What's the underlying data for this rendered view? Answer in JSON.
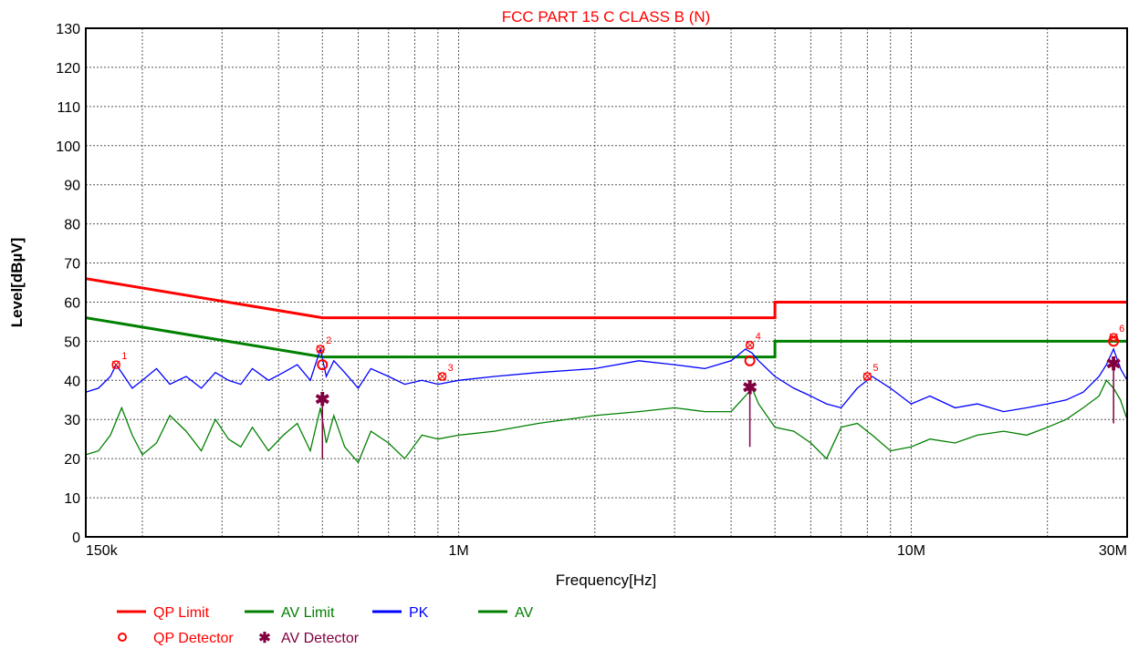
{
  "chart_data": {
    "type": "line",
    "title": "FCC PART 15 C CLASS B (N)",
    "xlabel": "Frequency[Hz]",
    "ylabel": "Level[dBµV]",
    "x_scale": "log",
    "xlim": [
      150000,
      30000000
    ],
    "ylim": [
      0,
      130
    ],
    "grid": true,
    "y_ticks": [
      "0",
      "10",
      "20",
      "30",
      "40",
      "50",
      "60",
      "70",
      "80",
      "90",
      "100",
      "110",
      "120",
      "130"
    ],
    "x_ticks": [
      {
        "value": 150000,
        "label": "150k"
      },
      {
        "value": 1000000,
        "label": "1M"
      },
      {
        "value": 10000000,
        "label": "10M"
      },
      {
        "value": 30000000,
        "label": "30M"
      }
    ],
    "colors": {
      "qp_limit": "#ff0000",
      "av_limit": "#008000",
      "pk": "#0000ff",
      "av": "#008000",
      "qp_detector": "#ff0000",
      "av_detector": "#800040"
    },
    "series": [
      {
        "name": "QP Limit",
        "color": "#ff0000",
        "x": [
          150000,
          500000,
          500000,
          5000000,
          5000000,
          30000000
        ],
        "y": [
          66,
          56,
          56,
          56,
          60,
          60
        ]
      },
      {
        "name": "AV Limit",
        "color": "#008000",
        "x": [
          150000,
          500000,
          500000,
          5000000,
          5000000,
          30000000
        ],
        "y": [
          56,
          46,
          46,
          46,
          50,
          50
        ]
      },
      {
        "name": "PK",
        "color": "#0000ff",
        "x": [
          150000,
          160000,
          170000,
          175000,
          180000,
          190000,
          200000,
          215000,
          230000,
          250000,
          270000,
          290000,
          310000,
          330000,
          350000,
          380000,
          410000,
          440000,
          470000,
          495000,
          510000,
          530000,
          560000,
          600000,
          640000,
          700000,
          760000,
          830000,
          900000,
          1000000,
          1200000,
          1500000,
          2000000,
          2500000,
          3000000,
          3500000,
          4000000,
          4300000,
          4450000,
          4600000,
          5000000,
          5500000,
          6000000,
          6500000,
          7000000,
          7600000,
          8200000,
          9000000,
          10000000,
          11000000,
          12500000,
          14000000,
          16000000,
          18000000,
          20000000,
          22000000,
          24000000,
          26000000,
          27000000,
          28000000,
          29000000,
          30000000
        ],
        "y": [
          37,
          38,
          41,
          44,
          42,
          38,
          40,
          43,
          39,
          41,
          38,
          42,
          40,
          39,
          43,
          40,
          42,
          44,
          40,
          48,
          41,
          45,
          42,
          38,
          43,
          41,
          39,
          40,
          39,
          40,
          41,
          42,
          43,
          45,
          44,
          43,
          45,
          48,
          47,
          45,
          41,
          38,
          36,
          34,
          33,
          38,
          41,
          38,
          34,
          36,
          33,
          34,
          32,
          33,
          34,
          35,
          37,
          41,
          44,
          48,
          43,
          40
        ]
      },
      {
        "name": "AV",
        "color": "#008000",
        "x": [
          150000,
          160000,
          170000,
          180000,
          190000,
          200000,
          215000,
          230000,
          250000,
          270000,
          290000,
          310000,
          330000,
          350000,
          380000,
          410000,
          440000,
          470000,
          495000,
          510000,
          530000,
          560000,
          600000,
          640000,
          700000,
          760000,
          830000,
          900000,
          1000000,
          1200000,
          1500000,
          2000000,
          2500000,
          3000000,
          3500000,
          4000000,
          4300000,
          4450000,
          4600000,
          5000000,
          5500000,
          6000000,
          6500000,
          7000000,
          7600000,
          8200000,
          9000000,
          10000000,
          11000000,
          12500000,
          14000000,
          16000000,
          18000000,
          20000000,
          22000000,
          24000000,
          26000000,
          27000000,
          28000000,
          29000000,
          30000000
        ],
        "y": [
          21,
          22,
          26,
          33,
          26,
          21,
          24,
          31,
          27,
          22,
          30,
          25,
          23,
          28,
          22,
          26,
          29,
          22,
          33,
          24,
          31,
          23,
          19,
          27,
          24,
          20,
          26,
          25,
          26,
          27,
          29,
          31,
          32,
          33,
          32,
          32,
          36,
          38,
          34,
          28,
          27,
          24,
          20,
          28,
          29,
          26,
          22,
          23,
          25,
          24,
          26,
          27,
          26,
          28,
          30,
          33,
          36,
          40,
          38,
          35,
          30
        ]
      }
    ],
    "qp_detector": [
      {
        "label": "1",
        "x": 500000,
        "y": 44
      },
      {
        "label": "2",
        "x": 4400000,
        "y": 45
      },
      {
        "label": "3",
        "x": 28000000,
        "y": 50
      }
    ],
    "av_detector": [
      {
        "label": "1",
        "x": 500000,
        "y": 35
      },
      {
        "label": "2",
        "x": 4400000,
        "y": 38
      },
      {
        "label": "3",
        "x": 28000000,
        "y": 44
      }
    ],
    "peak_markers": [
      {
        "label": "1",
        "x": 175000,
        "y": 44
      },
      {
        "label": "2",
        "x": 495000,
        "y": 48
      },
      {
        "label": "3",
        "x": 920000,
        "y": 41
      },
      {
        "label": "4",
        "x": 4400000,
        "y": 49
      },
      {
        "label": "5",
        "x": 8000000,
        "y": 41
      },
      {
        "label": "6",
        "x": 28000000,
        "y": 51
      }
    ],
    "legend": [
      {
        "label": "QP Limit",
        "kind": "line",
        "color": "#ff0000"
      },
      {
        "label": "AV Limit",
        "kind": "line",
        "color": "#008000"
      },
      {
        "label": "PK",
        "kind": "line",
        "color": "#0000ff"
      },
      {
        "label": "AV",
        "kind": "line",
        "color": "#008000"
      },
      {
        "label": "QP Detector",
        "kind": "circle",
        "color": "#ff0000"
      },
      {
        "label": "AV Detector",
        "kind": "star",
        "color": "#800040"
      }
    ]
  }
}
